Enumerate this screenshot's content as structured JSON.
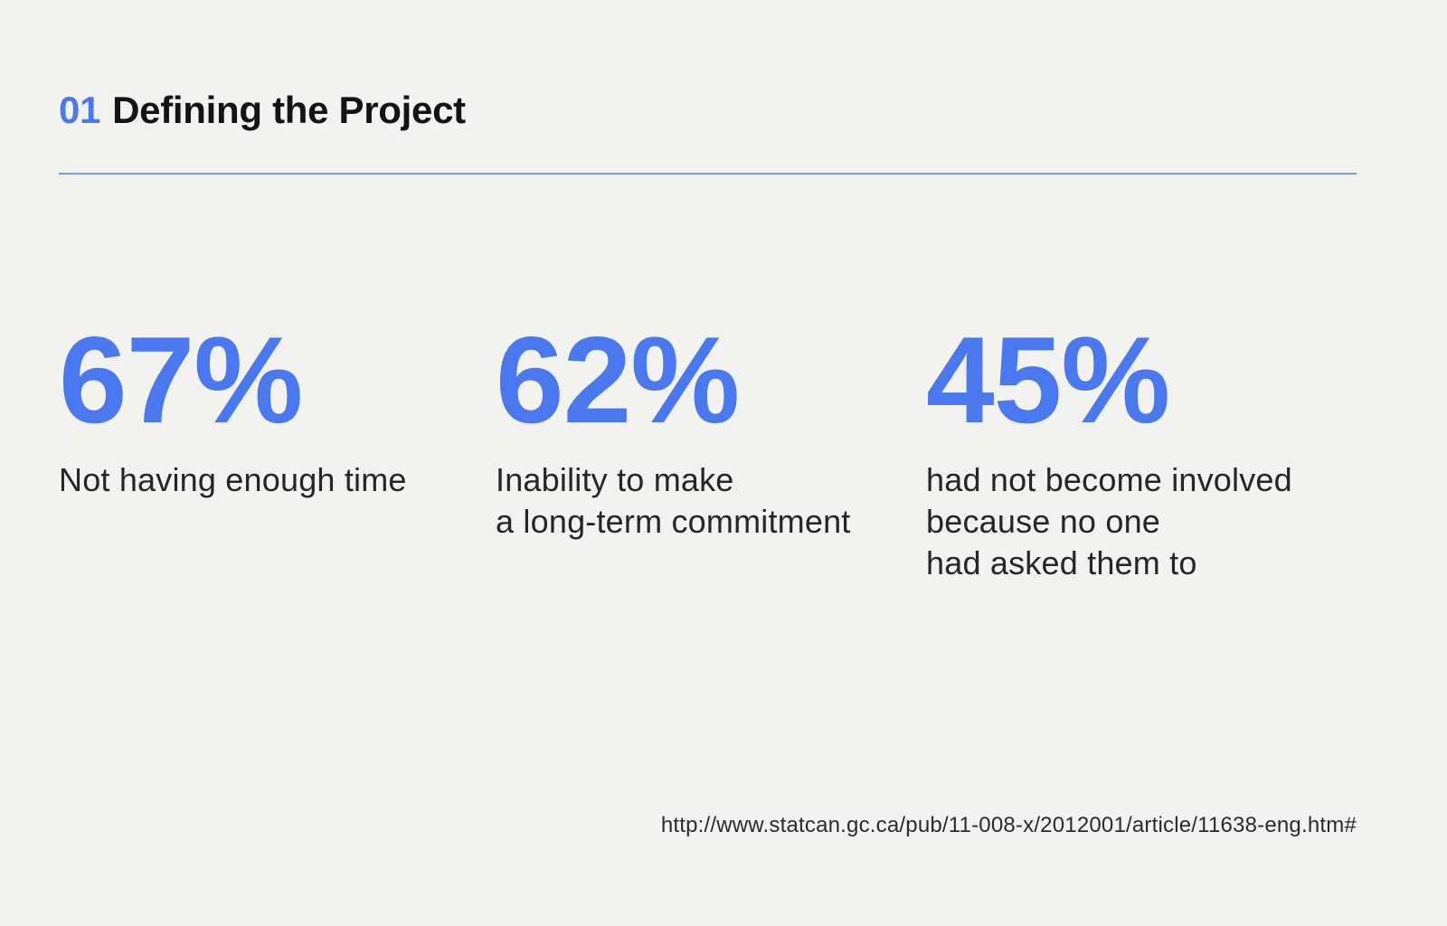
{
  "slide": {
    "background_color": "#f2f2f1",
    "accent_color": "#4a78ee",
    "text_color": "#262626",
    "header": {
      "number": "01",
      "title": "Defining the Project"
    },
    "stats": [
      {
        "value": "67%",
        "caption": "Not having enough time"
      },
      {
        "value": "62%",
        "caption": "Inability to make\na long-term commitment"
      },
      {
        "value": "45%",
        "caption": "had not become involved\nbecause no one\nhad asked them to"
      }
    ],
    "source_url": "http://www.statcan.gc.ca/pub/11-008-x/2012001/article/11638-eng.htm#"
  }
}
